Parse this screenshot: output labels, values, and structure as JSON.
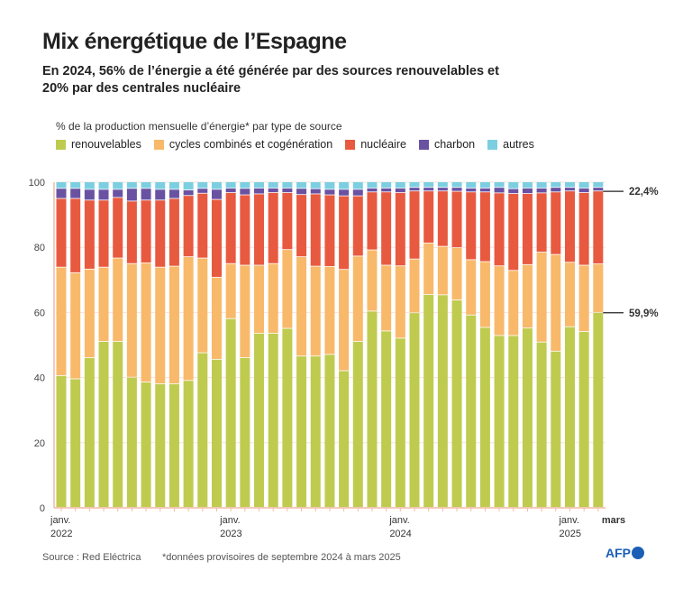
{
  "title": "Mix énergétique de l’Espagne",
  "subtitle": "En 2024, 56% de l’énergie a été générée par des sources renouvelables et 20% par des centrales nucléaire",
  "footer": {
    "source": "Source : Red Eléctrica",
    "note": "*données provisoires de septembre 2024 à mars 2025",
    "logo": "AFP"
  },
  "chart_data": {
    "type": "bar",
    "stacked": true,
    "title": "",
    "ylabel": "% de la production mensuelle d’énergie* par type de source",
    "ylim": [
      0,
      100
    ],
    "yticks": [
      0,
      20,
      40,
      60,
      80,
      100
    ],
    "grid": true,
    "legend_position": "top-left",
    "categories": [
      "2022-01",
      "2022-02",
      "2022-03",
      "2022-04",
      "2022-05",
      "2022-06",
      "2022-07",
      "2022-08",
      "2022-09",
      "2022-10",
      "2022-11",
      "2022-12",
      "2023-01",
      "2023-02",
      "2023-03",
      "2023-04",
      "2023-05",
      "2023-06",
      "2023-07",
      "2023-08",
      "2023-09",
      "2023-10",
      "2023-11",
      "2023-12",
      "2024-01",
      "2024-02",
      "2024-03",
      "2024-04",
      "2024-05",
      "2024-06",
      "2024-07",
      "2024-08",
      "2024-09",
      "2024-10",
      "2024-11",
      "2024-12",
      "2025-01",
      "2025-02",
      "2025-03"
    ],
    "xtick_labels": [
      {
        "index": 0,
        "line1": "janv.",
        "line2": "2022",
        "bold": false
      },
      {
        "index": 12,
        "line1": "janv.",
        "line2": "2023",
        "bold": false
      },
      {
        "index": 24,
        "line1": "janv.",
        "line2": "2024",
        "bold": false
      },
      {
        "index": 36,
        "line1": "janv.",
        "line2": "2025",
        "bold": false
      },
      {
        "index": 38,
        "line1": "mars",
        "line2": "",
        "bold": true
      }
    ],
    "series": [
      {
        "name": "renouvelables",
        "color": "#bfcb4f",
        "values": [
          40.5,
          39.5,
          46,
          51,
          51,
          40,
          38.5,
          38,
          38,
          39,
          47.5,
          45.5,
          58,
          46,
          53.5,
          53.5,
          55,
          46.5,
          46.5,
          47,
          42,
          51,
          60.3,
          54.2,
          52,
          59.8,
          65.4,
          65.3,
          63.7,
          59.1,
          55.3,
          52.8,
          52.8,
          55.1,
          50.8,
          48,
          55.5,
          54,
          59.9
        ]
      },
      {
        "name": "cycles combinés et cogénération",
        "color": "#f8b96b",
        "values": [
          33.3,
          32.6,
          27.2,
          22.8,
          25.6,
          34.9,
          36.6,
          35.8,
          36.1,
          38.0,
          29.1,
          25.2,
          16.9,
          28.4,
          20.9,
          21.4,
          24.2,
          30.5,
          27.6,
          27.0,
          31.1,
          26.2,
          18.8,
          20.2,
          22.2,
          16.5,
          15.8,
          14.9,
          16.1,
          17.0,
          20.2,
          21.4,
          20.0,
          19.5,
          27.6,
          29.7,
          19.8,
          20.4,
          14.9
        ]
      },
      {
        "name": "nucléaire",
        "color": "#e85a40",
        "values": [
          21.1,
          22.8,
          21.2,
          20.6,
          18.6,
          19.2,
          19.3,
          20.6,
          20.8,
          18.8,
          19.9,
          23.9,
          21.8,
          21.6,
          21.9,
          21.8,
          17.5,
          19.1,
          22.2,
          22.0,
          22.6,
          18.5,
          17.8,
          22.5,
          22.5,
          20.9,
          16.0,
          17.0,
          17.3,
          20.8,
          21.4,
          22.4,
          23.6,
          21.8,
          18.2,
          19.2,
          21.9,
          22.3,
          22.4
        ]
      },
      {
        "name": "charbon",
        "color": "#6a52a3",
        "values": [
          3.1,
          3.1,
          3.3,
          3.3,
          2.5,
          3.9,
          3.6,
          3.3,
          2.8,
          1.7,
          1.5,
          3.1,
          1.4,
          2.0,
          1.8,
          1.4,
          1.4,
          1.9,
          1.6,
          1.7,
          2.0,
          2.0,
          1.2,
          1.2,
          1.4,
          1.1,
          1.1,
          1.1,
          1.2,
          1.2,
          1.2,
          1.7,
          1.5,
          1.7,
          1.5,
          1.4,
          1.1,
          1.4,
          1.1
        ]
      },
      {
        "name": "autres",
        "color": "#7ccfe0",
        "values": [
          2.0,
          2.0,
          2.3,
          2.3,
          2.3,
          2.0,
          2.0,
          2.3,
          2.3,
          2.5,
          2.0,
          2.3,
          1.9,
          2.0,
          1.9,
          1.9,
          1.9,
          2.0,
          2.1,
          2.3,
          2.3,
          2.3,
          1.9,
          1.9,
          1.9,
          1.7,
          1.7,
          1.7,
          1.7,
          1.9,
          1.9,
          1.7,
          2.1,
          1.9,
          1.9,
          1.7,
          1.7,
          1.9,
          1.7
        ]
      }
    ],
    "annotations": [
      {
        "series": "nucléaire",
        "index": 38,
        "label": "22,4%"
      },
      {
        "series": "renouvelables",
        "index": 38,
        "label": "59,9%"
      }
    ]
  }
}
